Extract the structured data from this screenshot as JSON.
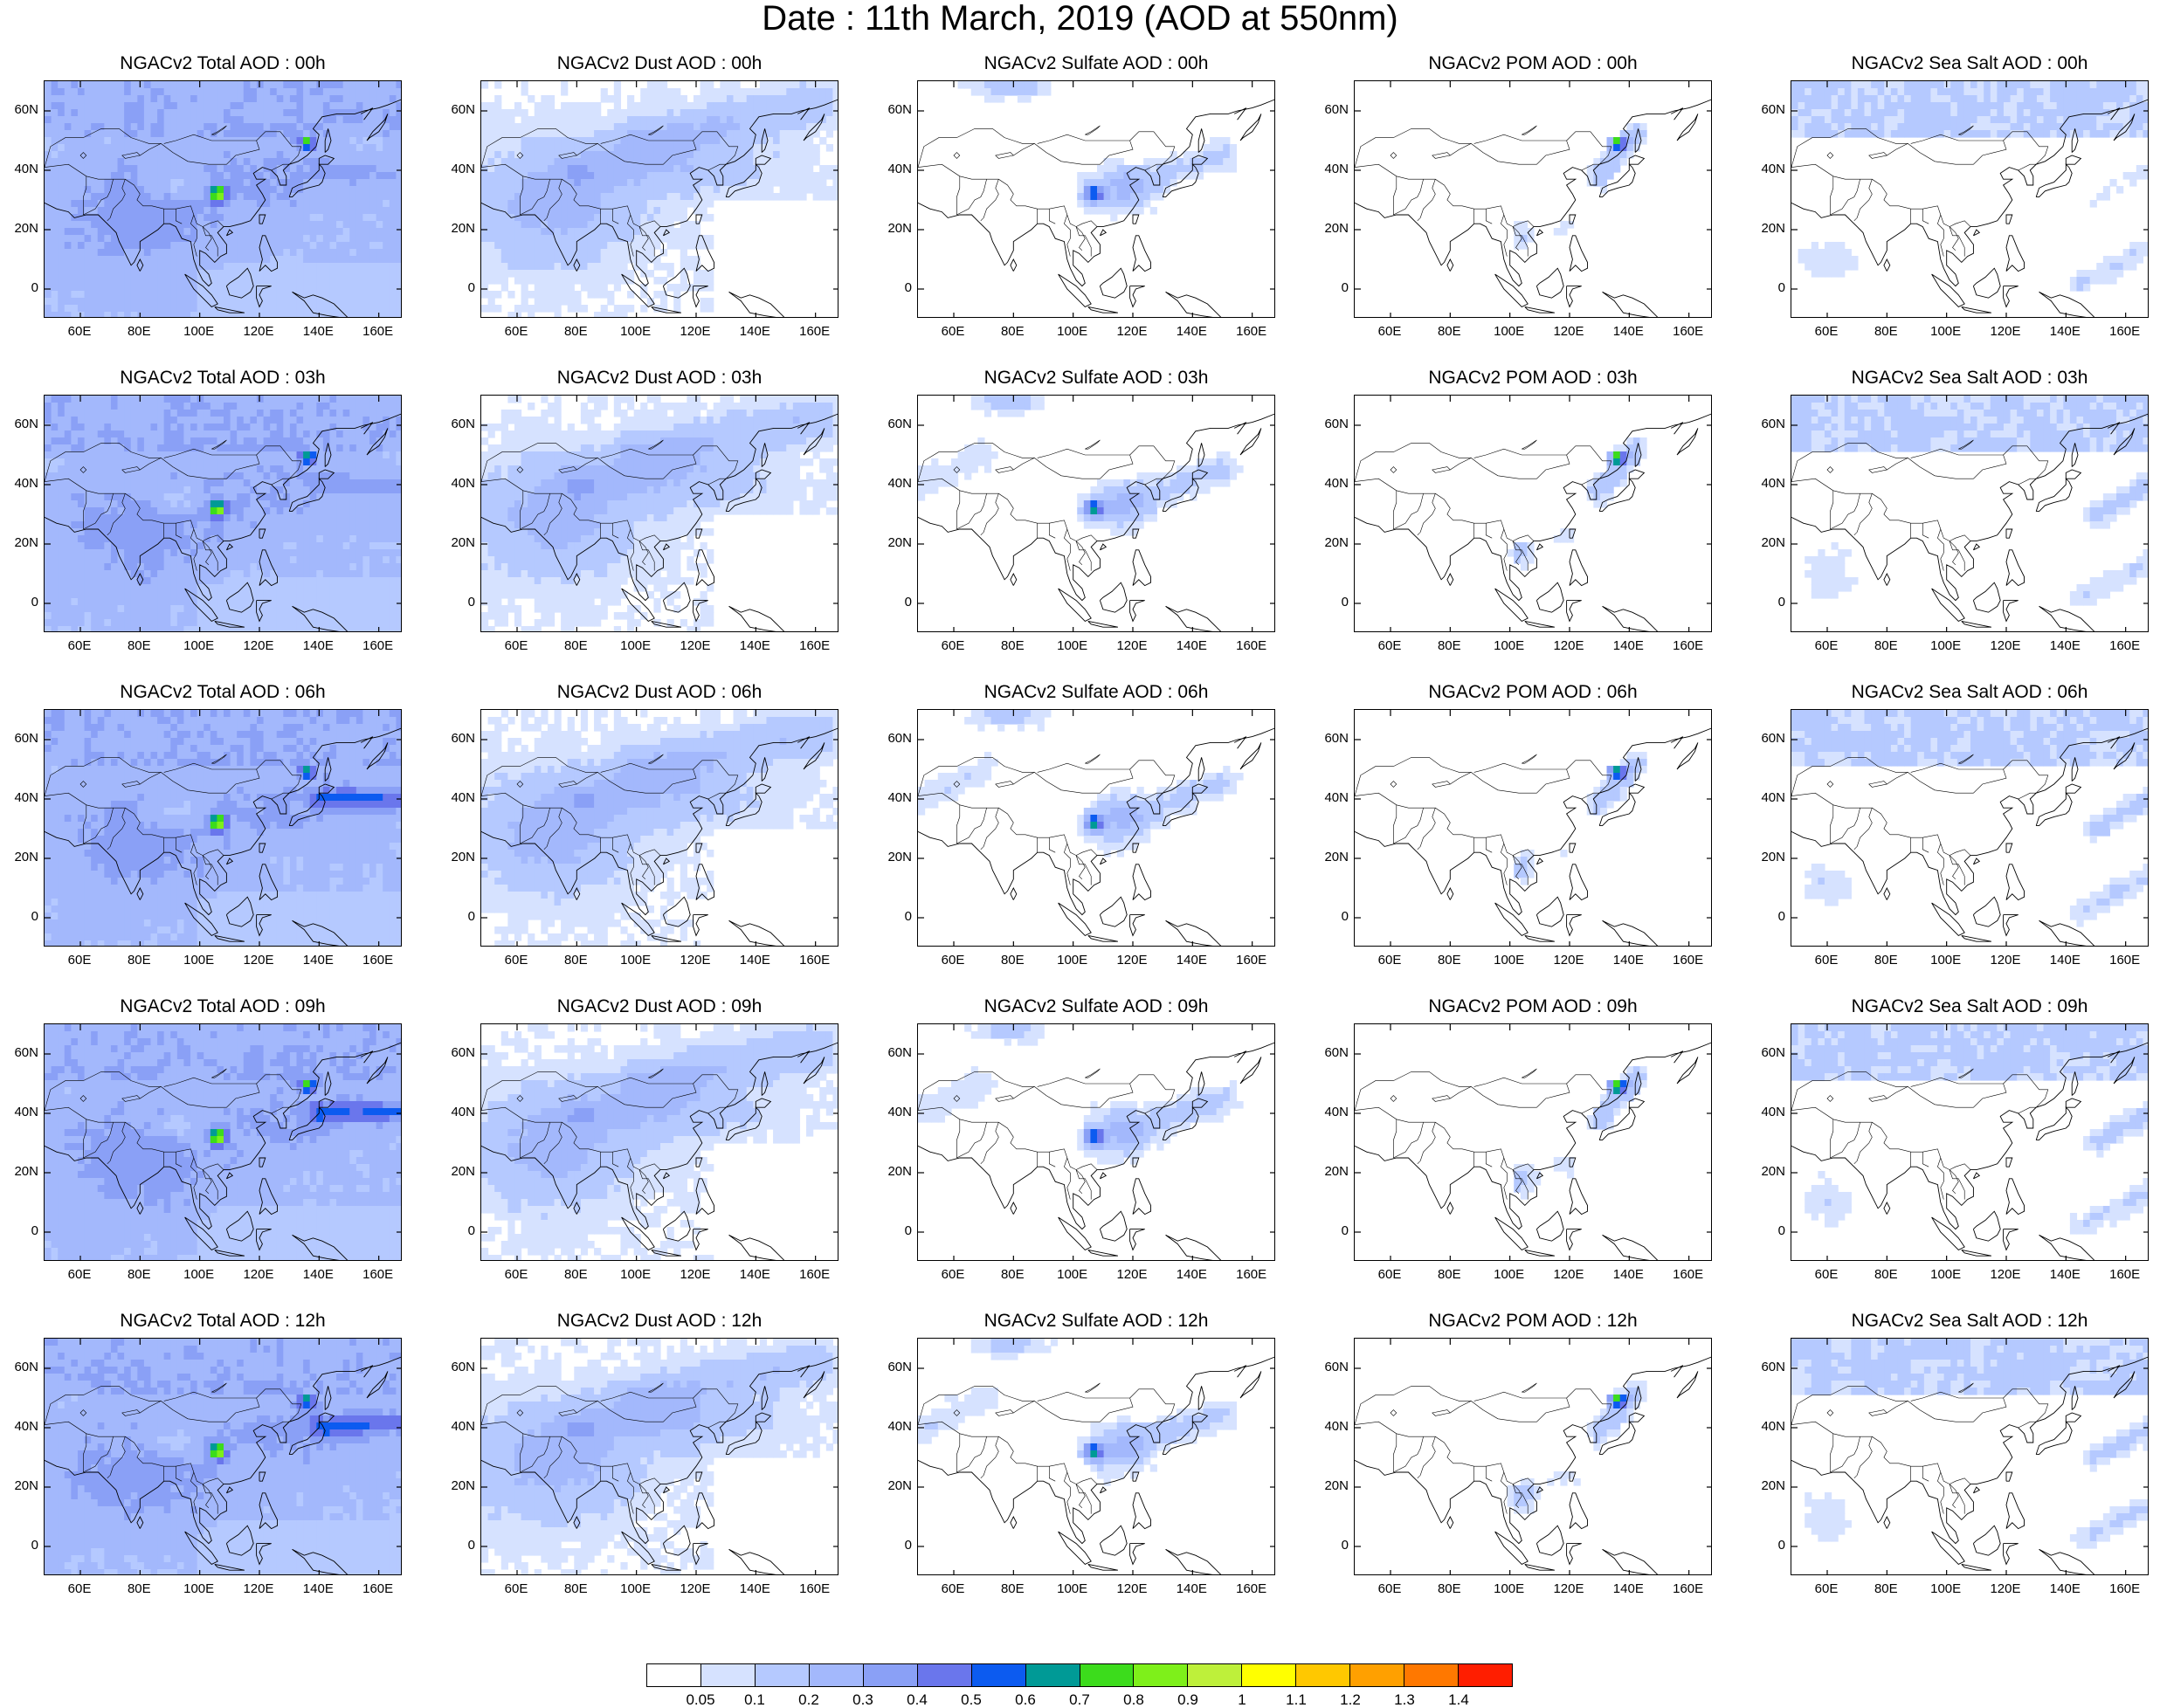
{
  "title": "Date : 11th March, 2019 (AOD at 550nm)",
  "panels": [
    [
      "NGACv2 Total AOD : 00h",
      "NGACv2 Dust AOD : 00h",
      "NGACv2 Sulfate AOD : 00h",
      "NGACv2 POM AOD : 00h",
      "NGACv2 Sea Salt AOD : 00h"
    ],
    [
      "NGACv2 Total AOD : 03h",
      "NGACv2 Dust AOD : 03h",
      "NGACv2 Sulfate AOD : 03h",
      "NGACv2 POM AOD : 03h",
      "NGACv2 Sea Salt AOD : 03h"
    ],
    [
      "NGACv2 Total AOD : 06h",
      "NGACv2 Dust AOD : 06h",
      "NGACv2 Sulfate AOD : 06h",
      "NGACv2 POM AOD : 06h",
      "NGACv2 Sea Salt AOD : 06h"
    ],
    [
      "NGACv2 Total AOD : 09h",
      "NGACv2 Dust AOD : 09h",
      "NGACv2 Sulfate AOD : 09h",
      "NGACv2 POM AOD : 09h",
      "NGACv2 Sea Salt  AOD : 09h"
    ],
    [
      "NGACv2 Total AOD  : 12h",
      "NGACv2 Dust AOD : 12h",
      "NGACv2 Sulfate AOD : 12h",
      "NGACv2 POM  AOD : 12h",
      "NGACv2 Sea Salt  AOD : 12h"
    ]
  ],
  "lat_labels": [
    "60N",
    "40N",
    "20N",
    "0"
  ],
  "lon_labels": [
    "60E",
    "80E",
    "100E",
    "120E",
    "140E",
    "160E"
  ],
  "map_extent": {
    "lon": [
      48,
      168
    ],
    "lat": [
      -10,
      70
    ]
  },
  "colorbar": {
    "colors": [
      "#ffffff",
      "#d6e2ff",
      "#b5c9ff",
      "#a3b8fc",
      "#8aa0f6",
      "#6a76ec",
      "#0c5bf0",
      "#009a96",
      "#3cdc1c",
      "#7ef01a",
      "#bef03a",
      "#ffff00",
      "#ffc800",
      "#ffa000",
      "#ff7800",
      "#ff1e00"
    ],
    "labels": [
      "0.05",
      "0.1",
      "0.2",
      "0.3",
      "0.4",
      "0.5",
      "0.6",
      "0.7",
      "0.8",
      "0.9",
      "1",
      "1.1",
      "1.2",
      "1.3",
      "1.4"
    ]
  }
}
